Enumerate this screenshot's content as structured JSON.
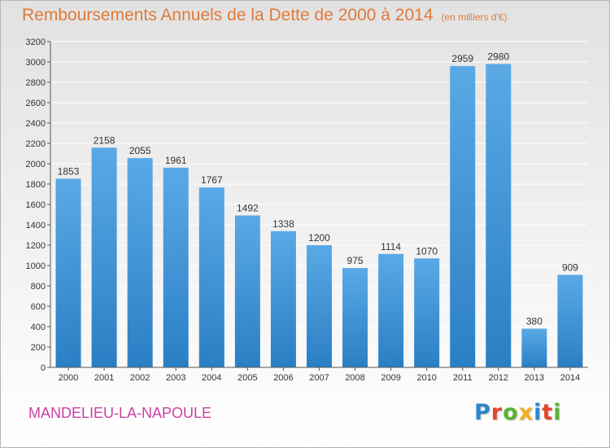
{
  "header": {
    "title": "Remboursements Annuels de la Dette de 2000 à 2014",
    "subtitle": "(en milliers d'€)"
  },
  "footer": {
    "commune": "MANDELIEU-LA-NAPOULE",
    "logo_text": "Proxiti",
    "logo_letters": [
      {
        "ch": "P",
        "color": "#2e86c8"
      },
      {
        "ch": "r",
        "color": "#e8452c"
      },
      {
        "ch": "o",
        "color": "#58b431"
      },
      {
        "ch": "x",
        "color": "#f2b01e"
      },
      {
        "ch": "i",
        "color": "#2e86c8"
      },
      {
        "ch": "t",
        "color": "#e8452c"
      },
      {
        "ch": "i",
        "color": "#58b431"
      }
    ]
  },
  "colors": {
    "bar_light": "#5aa9e6",
    "bar_dark": "#2a7fc4",
    "title": "#e07b3a",
    "commune": "#cc3fa4",
    "axis": "#555555",
    "grid": "#ffffff"
  },
  "chart_data": {
    "type": "bar",
    "title": "Remboursements Annuels de la Dette de 2000 à 2014",
    "subtitle": "(en milliers d'€)",
    "categories": [
      "2000",
      "2001",
      "2002",
      "2003",
      "2004",
      "2005",
      "2006",
      "2007",
      "2008",
      "2009",
      "2010",
      "2011",
      "2012",
      "2013",
      "2014"
    ],
    "values": [
      1853,
      2158,
      2055,
      1961,
      1767,
      1492,
      1338,
      1200,
      975,
      1114,
      1070,
      2959,
      2980,
      380,
      909
    ],
    "ylim": [
      0,
      3200
    ],
    "yticks": [
      0,
      200,
      400,
      600,
      800,
      1000,
      1200,
      1400,
      1600,
      1800,
      2000,
      2200,
      2400,
      2600,
      2800,
      3000,
      3200
    ],
    "grid": true,
    "xlabel": "",
    "ylabel": ""
  }
}
